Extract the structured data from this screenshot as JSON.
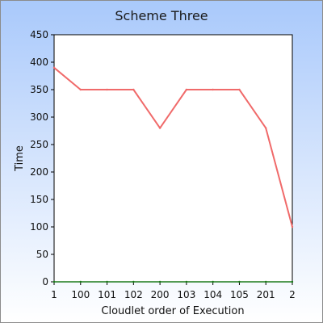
{
  "chart_data": {
    "type": "line",
    "title": "Scheme Three",
    "xlabel": "Cloudlet order of Execution",
    "ylabel": "Time",
    "categories": [
      "1",
      "100",
      "101",
      "102",
      "200",
      "103",
      "104",
      "105",
      "201",
      "2"
    ],
    "ylim": [
      0,
      450
    ],
    "yticks": [
      0,
      50,
      100,
      150,
      200,
      250,
      300,
      350,
      400,
      450
    ],
    "grid": false,
    "legend": "none",
    "series": [
      {
        "values": [
          390,
          350,
          350,
          350,
          280,
          350,
          350,
          350,
          280,
          100
        ],
        "color": "#f06a6a"
      },
      {
        "values": [
          0,
          0,
          0,
          0,
          0,
          0,
          0,
          0,
          0,
          0
        ],
        "color": "#1a7a1a"
      }
    ]
  }
}
